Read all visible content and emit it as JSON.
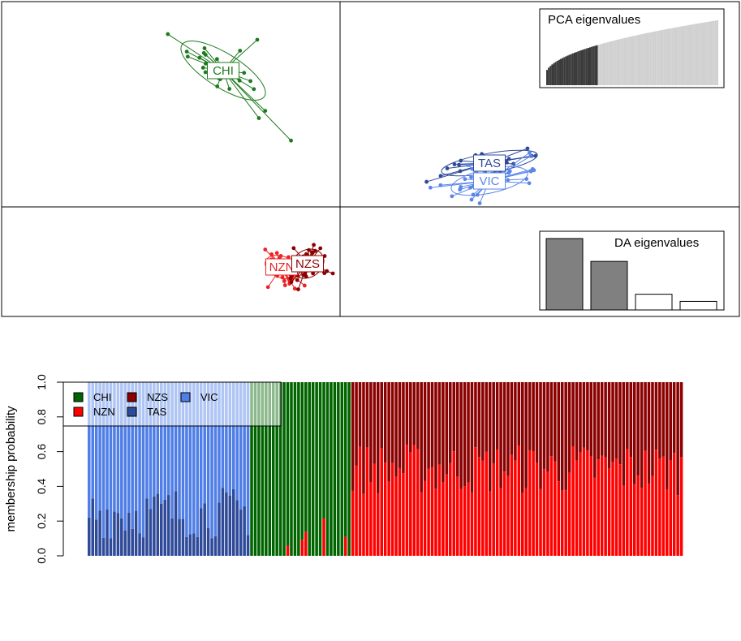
{
  "chart_data": [
    {
      "type": "scatter",
      "title": "",
      "xlabel": "",
      "ylabel": "",
      "grid": false,
      "axes": "centered crosshair through origin",
      "groups": [
        {
          "name": "CHI",
          "color": "#1e7a1e",
          "center": [
            -3.6,
            4.2
          ],
          "spread": [
            0.35,
            1.0
          ],
          "angle": -58,
          "n": 30
        },
        {
          "name": "NZN",
          "color": "#ee2222",
          "center": [
            -1.8,
            -1.85
          ],
          "spread": [
            0.35,
            0.22
          ],
          "angle": 20,
          "n": 60
        },
        {
          "name": "NZS",
          "color": "#8b0000",
          "center": [
            -1.0,
            -1.75
          ],
          "spread": [
            0.28,
            0.35
          ],
          "angle": 60,
          "n": 60
        },
        {
          "name": "TAS",
          "color": "#2e4a99",
          "center": [
            4.6,
            1.35
          ],
          "spread": [
            1.0,
            0.2
          ],
          "angle": -10,
          "n": 22
        },
        {
          "name": "VIC",
          "color": "#5b86e8",
          "center": [
            4.6,
            0.8
          ],
          "spread": [
            0.8,
            0.25
          ],
          "angle": -12,
          "n": 40
        }
      ],
      "insets": {
        "pca": {
          "title": "PCA eigenvalues",
          "n_bars": 100,
          "n_retained": 30
        },
        "da": {
          "title": "DA eigenvalues",
          "values": [
            1.0,
            0.68,
            0.22,
            0.12
          ],
          "retained": 2
        }
      }
    },
    {
      "type": "bar",
      "stacked": true,
      "title": "",
      "xlabel": "",
      "ylabel": "membership probability",
      "ylim": [
        0,
        1
      ],
      "yticks": [
        "0.0",
        "0.2",
        "0.4",
        "0.6",
        "0.8",
        "1.0"
      ],
      "series": [
        {
          "name": "CHI",
          "color": "#006400"
        },
        {
          "name": "NZS",
          "color": "#8b0000"
        },
        {
          "name": "VIC",
          "color": "#4f7ee6"
        },
        {
          "name": "NZN",
          "color": "#ff0000"
        },
        {
          "name": "TAS",
          "color": "#2e4a99"
        }
      ],
      "legend": {
        "position": "top-left",
        "rows": [
          [
            "CHI",
            "NZS",
            "VIC"
          ],
          [
            "NZN",
            "TAS"
          ]
        ]
      },
      "groups": [
        {
          "name": "VIC",
          "count": 45,
          "composition": "TAS 0.10-0.40, VIC rest"
        },
        {
          "name": "CHI",
          "count": 28,
          "composition": "CHI ~1.0, a few NZS/NZN"
        },
        {
          "name": "NZN/NZS",
          "count": 92,
          "composition": "NZN 0.35-0.65, NZS rest"
        }
      ]
    }
  ]
}
